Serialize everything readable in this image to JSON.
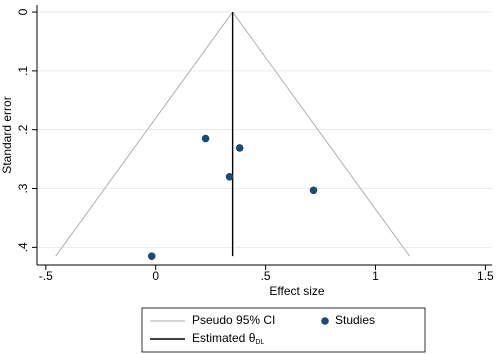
{
  "chart_data": {
    "type": "scatter",
    "xlabel": "Effect size",
    "ylabel": "Standard error",
    "xlim": [
      -0.54,
      1.53
    ],
    "ylim": [
      -0.012,
      0.43
    ],
    "y_reversed": true,
    "grid": true,
    "xticks": [
      {
        "value": -0.5,
        "label": "-.5"
      },
      0,
      {
        "value": 0.5,
        "label": ".5"
      },
      1,
      {
        "value": 1.5,
        "label": "1.5"
      }
    ],
    "yticks": [
      0,
      {
        "value": 0.1,
        "label": ".1"
      },
      {
        "value": 0.2,
        "label": ".2"
      },
      {
        "value": 0.3,
        "label": ".3"
      },
      {
        "value": 0.4,
        "label": ".4"
      }
    ],
    "series": [
      {
        "name": "Studies",
        "color": "#1b4a72",
        "x": [
          0.227,
          0.382,
          0.336,
          0.718,
          -0.018
        ],
        "values": [
          0.215,
          0.231,
          0.28,
          0.303,
          0.415
        ]
      }
    ],
    "pseudo_ci": {
      "name": "Pseudo 95% CI",
      "color": "#b0b0b0",
      "x_lower": [
        0.35,
        -0.455
      ],
      "x_upper": [
        0.35,
        1.155
      ],
      "se": [
        0,
        0.415
      ]
    },
    "estimate": {
      "name": "Estimated θ",
      "subscript": "DL",
      "color": "#000000",
      "value": 0.35,
      "se": [
        0,
        0.415
      ]
    }
  }
}
